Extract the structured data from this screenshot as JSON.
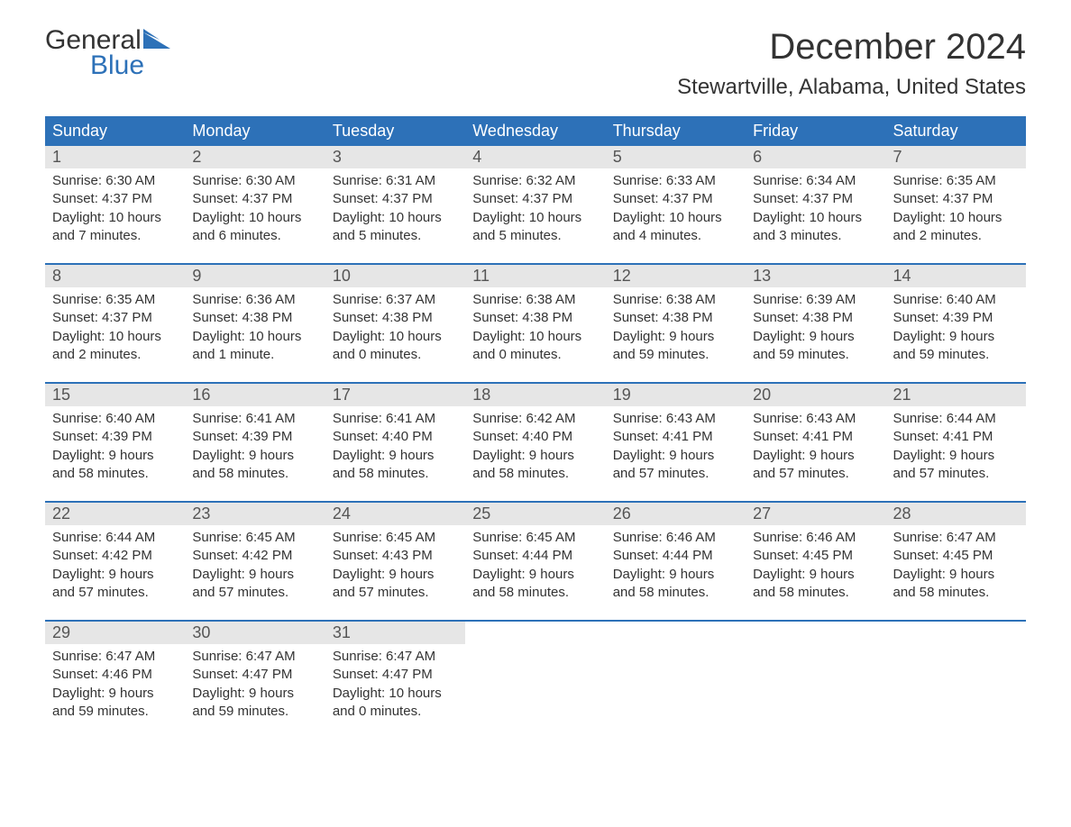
{
  "logo": {
    "word1": "General",
    "word2": "Blue"
  },
  "title": "December 2024",
  "location": "Stewartville, Alabama, United States",
  "colors": {
    "header_bg": "#2d71b8",
    "header_text": "#ffffff",
    "daynum_bg": "#e6e6e6",
    "row_border": "#2d71b8",
    "body_text": "#333333",
    "logo_blue": "#2d71b8",
    "background": "#ffffff"
  },
  "weekdays": [
    "Sunday",
    "Monday",
    "Tuesday",
    "Wednesday",
    "Thursday",
    "Friday",
    "Saturday"
  ],
  "days": [
    {
      "n": "1",
      "sunrise": "Sunrise: 6:30 AM",
      "sunset": "Sunset: 4:37 PM",
      "day1": "Daylight: 10 hours",
      "day2": "and 7 minutes."
    },
    {
      "n": "2",
      "sunrise": "Sunrise: 6:30 AM",
      "sunset": "Sunset: 4:37 PM",
      "day1": "Daylight: 10 hours",
      "day2": "and 6 minutes."
    },
    {
      "n": "3",
      "sunrise": "Sunrise: 6:31 AM",
      "sunset": "Sunset: 4:37 PM",
      "day1": "Daylight: 10 hours",
      "day2": "and 5 minutes."
    },
    {
      "n": "4",
      "sunrise": "Sunrise: 6:32 AM",
      "sunset": "Sunset: 4:37 PM",
      "day1": "Daylight: 10 hours",
      "day2": "and 5 minutes."
    },
    {
      "n": "5",
      "sunrise": "Sunrise: 6:33 AM",
      "sunset": "Sunset: 4:37 PM",
      "day1": "Daylight: 10 hours",
      "day2": "and 4 minutes."
    },
    {
      "n": "6",
      "sunrise": "Sunrise: 6:34 AM",
      "sunset": "Sunset: 4:37 PM",
      "day1": "Daylight: 10 hours",
      "day2": "and 3 minutes."
    },
    {
      "n": "7",
      "sunrise": "Sunrise: 6:35 AM",
      "sunset": "Sunset: 4:37 PM",
      "day1": "Daylight: 10 hours",
      "day2": "and 2 minutes."
    },
    {
      "n": "8",
      "sunrise": "Sunrise: 6:35 AM",
      "sunset": "Sunset: 4:37 PM",
      "day1": "Daylight: 10 hours",
      "day2": "and 2 minutes."
    },
    {
      "n": "9",
      "sunrise": "Sunrise: 6:36 AM",
      "sunset": "Sunset: 4:38 PM",
      "day1": "Daylight: 10 hours",
      "day2": "and 1 minute."
    },
    {
      "n": "10",
      "sunrise": "Sunrise: 6:37 AM",
      "sunset": "Sunset: 4:38 PM",
      "day1": "Daylight: 10 hours",
      "day2": "and 0 minutes."
    },
    {
      "n": "11",
      "sunrise": "Sunrise: 6:38 AM",
      "sunset": "Sunset: 4:38 PM",
      "day1": "Daylight: 10 hours",
      "day2": "and 0 minutes."
    },
    {
      "n": "12",
      "sunrise": "Sunrise: 6:38 AM",
      "sunset": "Sunset: 4:38 PM",
      "day1": "Daylight: 9 hours",
      "day2": "and 59 minutes."
    },
    {
      "n": "13",
      "sunrise": "Sunrise: 6:39 AM",
      "sunset": "Sunset: 4:38 PM",
      "day1": "Daylight: 9 hours",
      "day2": "and 59 minutes."
    },
    {
      "n": "14",
      "sunrise": "Sunrise: 6:40 AM",
      "sunset": "Sunset: 4:39 PM",
      "day1": "Daylight: 9 hours",
      "day2": "and 59 minutes."
    },
    {
      "n": "15",
      "sunrise": "Sunrise: 6:40 AM",
      "sunset": "Sunset: 4:39 PM",
      "day1": "Daylight: 9 hours",
      "day2": "and 58 minutes."
    },
    {
      "n": "16",
      "sunrise": "Sunrise: 6:41 AM",
      "sunset": "Sunset: 4:39 PM",
      "day1": "Daylight: 9 hours",
      "day2": "and 58 minutes."
    },
    {
      "n": "17",
      "sunrise": "Sunrise: 6:41 AM",
      "sunset": "Sunset: 4:40 PM",
      "day1": "Daylight: 9 hours",
      "day2": "and 58 minutes."
    },
    {
      "n": "18",
      "sunrise": "Sunrise: 6:42 AM",
      "sunset": "Sunset: 4:40 PM",
      "day1": "Daylight: 9 hours",
      "day2": "and 58 minutes."
    },
    {
      "n": "19",
      "sunrise": "Sunrise: 6:43 AM",
      "sunset": "Sunset: 4:41 PM",
      "day1": "Daylight: 9 hours",
      "day2": "and 57 minutes."
    },
    {
      "n": "20",
      "sunrise": "Sunrise: 6:43 AM",
      "sunset": "Sunset: 4:41 PM",
      "day1": "Daylight: 9 hours",
      "day2": "and 57 minutes."
    },
    {
      "n": "21",
      "sunrise": "Sunrise: 6:44 AM",
      "sunset": "Sunset: 4:41 PM",
      "day1": "Daylight: 9 hours",
      "day2": "and 57 minutes."
    },
    {
      "n": "22",
      "sunrise": "Sunrise: 6:44 AM",
      "sunset": "Sunset: 4:42 PM",
      "day1": "Daylight: 9 hours",
      "day2": "and 57 minutes."
    },
    {
      "n": "23",
      "sunrise": "Sunrise: 6:45 AM",
      "sunset": "Sunset: 4:42 PM",
      "day1": "Daylight: 9 hours",
      "day2": "and 57 minutes."
    },
    {
      "n": "24",
      "sunrise": "Sunrise: 6:45 AM",
      "sunset": "Sunset: 4:43 PM",
      "day1": "Daylight: 9 hours",
      "day2": "and 57 minutes."
    },
    {
      "n": "25",
      "sunrise": "Sunrise: 6:45 AM",
      "sunset": "Sunset: 4:44 PM",
      "day1": "Daylight: 9 hours",
      "day2": "and 58 minutes."
    },
    {
      "n": "26",
      "sunrise": "Sunrise: 6:46 AM",
      "sunset": "Sunset: 4:44 PM",
      "day1": "Daylight: 9 hours",
      "day2": "and 58 minutes."
    },
    {
      "n": "27",
      "sunrise": "Sunrise: 6:46 AM",
      "sunset": "Sunset: 4:45 PM",
      "day1": "Daylight: 9 hours",
      "day2": "and 58 minutes."
    },
    {
      "n": "28",
      "sunrise": "Sunrise: 6:47 AM",
      "sunset": "Sunset: 4:45 PM",
      "day1": "Daylight: 9 hours",
      "day2": "and 58 minutes."
    },
    {
      "n": "29",
      "sunrise": "Sunrise: 6:47 AM",
      "sunset": "Sunset: 4:46 PM",
      "day1": "Daylight: 9 hours",
      "day2": "and 59 minutes."
    },
    {
      "n": "30",
      "sunrise": "Sunrise: 6:47 AM",
      "sunset": "Sunset: 4:47 PM",
      "day1": "Daylight: 9 hours",
      "day2": "and 59 minutes."
    },
    {
      "n": "31",
      "sunrise": "Sunrise: 6:47 AM",
      "sunset": "Sunset: 4:47 PM",
      "day1": "Daylight: 10 hours",
      "day2": "and 0 minutes."
    }
  ],
  "layout": {
    "start_weekday_index": 0,
    "total_cells": 35
  }
}
